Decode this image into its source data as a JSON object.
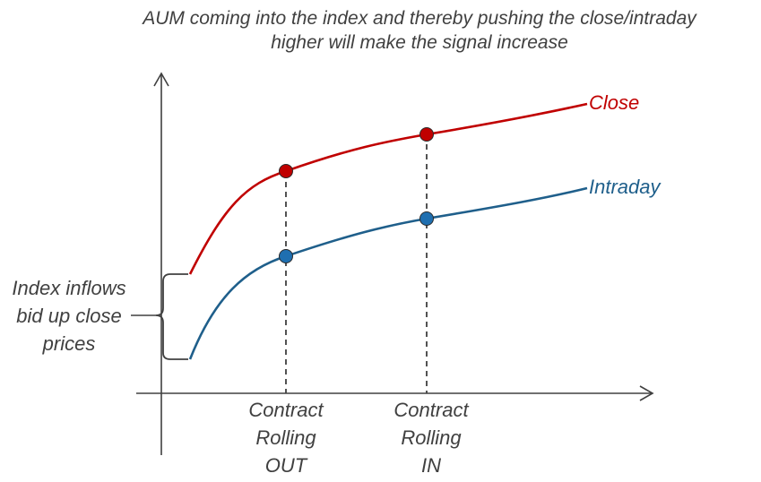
{
  "title": {
    "line1": "AUM coming into the index and thereby pushing the close/intraday",
    "line2": "higher will make the signal increase"
  },
  "series": {
    "close": {
      "name": "Close",
      "color": "#c00000"
    },
    "intraday": {
      "name": "Intraday",
      "color": "#1f5f8b"
    }
  },
  "markers": {
    "out": {
      "lines": [
        "Contract",
        "Rolling",
        "OUT"
      ]
    },
    "in": {
      "lines": [
        "Contract",
        "Rolling",
        "IN"
      ]
    }
  },
  "brace_annotation": {
    "lines": [
      "Index inflows",
      "bid up close",
      "prices"
    ]
  },
  "colors": {
    "axis": "#404040",
    "dot_close": "#c00000",
    "dot_intraday": "#1f6fb0",
    "text": "#404040"
  }
}
